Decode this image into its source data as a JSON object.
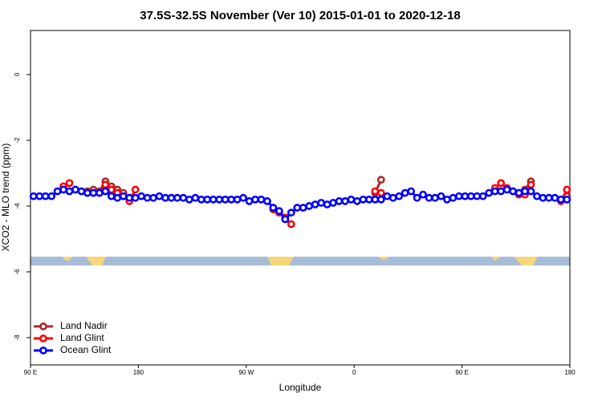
{
  "chart_data": {
    "type": "line",
    "title": "37.5S-32.5S November (Ver 10)   2015-01-01 to 2020-12-18",
    "x_label": "Longitude",
    "y_label": "XCO2 - MLO trend (ppm)",
    "xlim": [
      90,
      540
    ],
    "xticks": [
      {
        "value": 90,
        "label": "90 E"
      },
      {
        "value": 180,
        "label": "180"
      },
      {
        "value": 270,
        "label": "90 W"
      },
      {
        "value": 360,
        "label": "0"
      },
      {
        "value": 450,
        "label": "90 E"
      },
      {
        "value": 540,
        "label": "180"
      }
    ],
    "ylim": [
      -8.83,
      1.34
    ],
    "yticks": [
      0,
      -2,
      -4,
      -6,
      -8
    ],
    "legend": "bottomleft",
    "x": [
      92.5,
      97.5,
      102.5,
      107.5,
      112.5,
      117.5,
      122.5,
      127.5,
      132.5,
      137.5,
      142.5,
      147.5,
      152.5,
      157.5,
      162.5,
      167.5,
      172.5,
      177.5,
      182.5,
      187.5,
      192.5,
      197.5,
      202.5,
      207.5,
      212.5,
      217.5,
      222.5,
      227.5,
      232.5,
      237.5,
      242.5,
      247.5,
      252.5,
      257.5,
      262.5,
      267.5,
      272.5,
      277.5,
      282.5,
      287.5,
      292.5,
      297.5,
      302.5,
      307.5,
      312.5,
      317.5,
      322.5,
      327.5,
      332.5,
      337.5,
      342.5,
      347.5,
      352.5,
      357.5,
      362.5,
      367.5,
      372.5,
      377.5,
      382.5,
      387.5,
      392.5,
      397.5,
      402.5,
      407.5,
      412.5,
      417.5,
      422.5,
      427.5,
      432.5,
      437.5,
      442.5,
      447.5,
      452.5,
      457.5,
      462.5,
      467.5,
      472.5,
      477.5,
      482.5,
      487.5,
      492.5,
      497.5,
      502.5,
      507.5,
      512.5,
      517.5,
      522.5,
      527.5,
      532.5,
      537.5
    ],
    "series": [
      {
        "name": "Land Nadir",
        "color": "#a52a2a",
        "values": [
          null,
          null,
          null,
          null,
          null,
          null,
          null,
          null,
          null,
          -3.55,
          -3.5,
          -3.55,
          -3.25,
          -3.4,
          -3.5,
          -3.6,
          -3.75,
          null,
          null,
          null,
          null,
          null,
          null,
          null,
          null,
          null,
          null,
          null,
          null,
          null,
          null,
          null,
          null,
          null,
          null,
          null,
          null,
          null,
          null,
          null,
          null,
          null,
          null,
          null,
          null,
          null,
          null,
          null,
          null,
          null,
          null,
          null,
          null,
          null,
          null,
          null,
          null,
          -3.6,
          -3.2,
          null,
          null,
          null,
          null,
          null,
          null,
          null,
          null,
          null,
          null,
          null,
          null,
          null,
          null,
          null,
          null,
          null,
          null,
          null,
          null,
          null,
          null,
          null,
          -3.5,
          -3.25,
          null,
          null,
          null,
          null,
          null,
          -3.7
        ]
      },
      {
        "name": "Land Glint",
        "color": "#ff0000",
        "values": [
          null,
          null,
          null,
          null,
          null,
          -3.4,
          -3.3,
          null,
          -3.55,
          -3.6,
          -3.6,
          -3.6,
          -3.35,
          -3.5,
          -3.6,
          -3.7,
          -3.85,
          -3.5,
          null,
          null,
          null,
          null,
          null,
          null,
          null,
          null,
          null,
          null,
          null,
          null,
          null,
          null,
          null,
          null,
          null,
          null,
          null,
          null,
          null,
          null,
          -4.1,
          -4.2,
          -4.35,
          -4.55,
          null,
          null,
          null,
          null,
          null,
          null,
          null,
          null,
          null,
          null,
          null,
          null,
          null,
          -3.55,
          -3.6,
          null,
          null,
          null,
          null,
          null,
          null,
          null,
          null,
          null,
          null,
          null,
          null,
          null,
          null,
          null,
          null,
          null,
          null,
          -3.45,
          -3.3,
          -3.45,
          -3.55,
          -3.65,
          -3.65,
          -3.35,
          null,
          null,
          null,
          null,
          -3.85,
          -3.5
        ]
      },
      {
        "name": "Ocean Glint",
        "color": "#0000ff",
        "values": [
          -3.7,
          -3.7,
          -3.7,
          -3.7,
          -3.55,
          -3.5,
          -3.55,
          -3.5,
          -3.55,
          -3.6,
          -3.6,
          -3.6,
          -3.55,
          -3.7,
          -3.75,
          -3.7,
          -3.75,
          -3.75,
          -3.7,
          -3.75,
          -3.75,
          -3.7,
          -3.75,
          -3.75,
          -3.75,
          -3.75,
          -3.8,
          -3.75,
          -3.8,
          -3.8,
          -3.8,
          -3.8,
          -3.8,
          -3.8,
          -3.8,
          -3.75,
          -3.85,
          -3.8,
          -3.8,
          -3.85,
          -4.05,
          -4.15,
          -4.4,
          -4.2,
          -4.05,
          -4.05,
          -4.0,
          -3.95,
          -3.9,
          -3.95,
          -3.9,
          -3.85,
          -3.85,
          -3.8,
          -3.85,
          -3.8,
          -3.8,
          -3.8,
          -3.8,
          -3.7,
          -3.75,
          -3.7,
          -3.6,
          -3.55,
          -3.75,
          -3.65,
          -3.75,
          -3.75,
          -3.7,
          -3.8,
          -3.75,
          -3.7,
          -3.7,
          -3.7,
          -3.7,
          -3.7,
          -3.6,
          -3.55,
          -3.55,
          -3.5,
          -3.55,
          -3.6,
          -3.55,
          -3.55,
          -3.7,
          -3.75,
          -3.75,
          -3.75,
          -3.8,
          -3.8
        ]
      }
    ]
  }
}
